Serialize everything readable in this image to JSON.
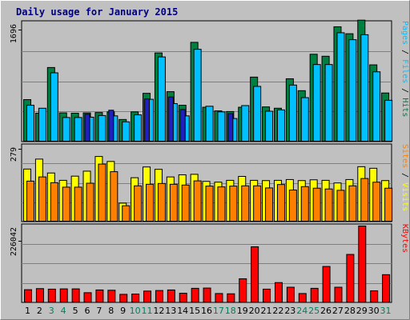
{
  "chart_data": {
    "type": "bar",
    "title": "Daily usage for January 2015",
    "categories": [
      "1",
      "2",
      "3",
      "4",
      "5",
      "6",
      "7",
      "8",
      "9",
      "10",
      "11",
      "12",
      "13",
      "14",
      "15",
      "16",
      "17",
      "18",
      "19",
      "20",
      "21",
      "22",
      "23",
      "24",
      "25",
      "26",
      "27",
      "28",
      "29",
      "30",
      "31"
    ],
    "weekend_days": [
      "3",
      "4",
      "10",
      "11",
      "17",
      "18",
      "24",
      "25",
      "31"
    ],
    "panels": [
      {
        "id": "hits",
        "scale_label": "1696",
        "ymax": 1800,
        "series": [
          {
            "name": "Hits",
            "color": "#008040",
            "values": [
              640,
              435,
              1125,
              440,
              435,
              440,
              445,
              455,
              340,
              455,
              735,
              1345,
              760,
              555,
              1505,
              525,
              470,
              460,
              525,
              980,
              530,
              510,
              955,
              775,
              1325,
              1295,
              1740,
              1635,
              1840,
              1165,
              740
            ]
          },
          {
            "name": "Files",
            "color": "#00C0FF",
            "values": [
              555,
              510,
              1045,
              370,
              370,
              375,
              400,
              395,
              305,
              410,
              645,
              1285,
              580,
              395,
              1400,
              540,
              455,
              355,
              550,
              840,
              465,
              485,
              860,
              670,
              1170,
              1170,
              1650,
              1545,
              1620,
              1060,
              630
            ]
          },
          {
            "name": "Pages",
            "color": "#2020C0",
            "values": [
              0,
              0,
              0,
              0,
              0,
              420,
              0,
              480,
              0,
              0,
              650,
              0,
              680,
              490,
              0,
              0,
              0,
              430,
              0,
              0,
              0,
              0,
              0,
              0,
              0,
              0,
              0,
              0,
              0,
              0,
              0
            ]
          }
        ]
      },
      {
        "id": "visits",
        "scale_label": "279",
        "ymax": 290,
        "series": [
          {
            "name": "Visits",
            "color": "#FFFF00",
            "values": [
              202,
              240,
              187,
              159,
              175,
              194,
              250,
              231,
              72,
              169,
              210,
              201,
              172,
              180,
              182,
              155,
              152,
              159,
              174,
              159,
              158,
              159,
              162,
              158,
              161,
              159,
              149,
              162,
              211,
              205,
              158
            ]
          },
          {
            "name": "Sites",
            "color": "#FF8000",
            "values": [
              156,
              172,
              150,
              133,
              133,
              148,
              221,
              192,
              62,
              138,
              144,
              147,
              144,
              141,
              157,
              137,
              134,
              137,
              138,
              138,
              130,
              143,
              122,
              135,
              129,
              126,
              121,
              138,
              166,
              152,
              129
            ]
          }
        ]
      },
      {
        "id": "kbytes",
        "scale_label": "226042",
        "ymax": 281000,
        "series": [
          {
            "name": "KBytes",
            "color": "#FF0000",
            "values": [
              48000,
              52000,
              50000,
              51000,
              51000,
              37000,
              47000,
              46000,
              31000,
              32000,
              43000,
              45000,
              47000,
              35000,
              53000,
              54000,
              34000,
              33000,
              88000,
              205000,
              50000,
              74000,
              57000,
              34000,
              53000,
              133000,
              57000,
              177000,
              281000,
              44000,
              103000
            ]
          }
        ]
      }
    ],
    "right_labels": {
      "hits_panel": [
        {
          "text": "Pages",
          "color": "#00C0FF"
        },
        {
          "text": " / ",
          "color": "#000000"
        },
        {
          "text": "Files",
          "color": "#00C0FF"
        },
        {
          "text": " / ",
          "color": "#000000"
        },
        {
          "text": "Hits",
          "color": "#008040"
        }
      ],
      "visits_panel": [
        {
          "text": "Sites",
          "color": "#FF8000"
        },
        {
          "text": " / ",
          "color": "#000000"
        },
        {
          "text": "Visits",
          "color": "#FFFF00"
        }
      ],
      "kbytes_panel": [
        {
          "text": "KBytes",
          "color": "#FF0000"
        }
      ]
    },
    "grid": true,
    "legend": "right-vertical",
    "weekday_color": "#000000",
    "weekend_color": "#00805C"
  }
}
